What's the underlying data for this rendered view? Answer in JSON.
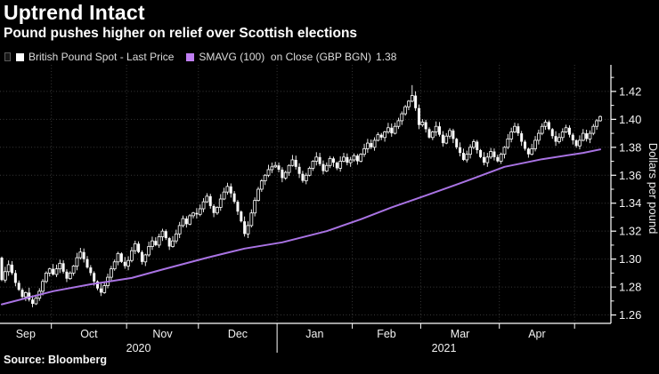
{
  "colors": {
    "background": "#000000",
    "title_text": "#ffffff",
    "legend_text": "#dcdcdc",
    "axis": "#ffffff",
    "grid": "#383838",
    "candle": "#ffffff",
    "smavg_line": "#a973e3",
    "smavg_swatch": "#c07ef2",
    "tick_text": "#f2f2f2"
  },
  "chart_data": {
    "type": "candlestick",
    "title": "Uptrend Intact",
    "subtitle": "Pound pushes higher on relief over Scottish elections",
    "source": "Source: Bloomberg",
    "ylabel": "Dollars per pound",
    "ylim": [
      1.254,
      1.439
    ],
    "y_ticks_major": [
      1.26,
      1.28,
      1.3,
      1.32,
      1.34,
      1.36,
      1.38,
      1.4,
      1.42
    ],
    "y_tick_labels": [
      "1.26",
      "1.28",
      "1.30",
      "1.32",
      "1.34",
      "1.36",
      "1.38",
      "1.40",
      "1.42"
    ],
    "y_minor_step": 0.01,
    "x_months": [
      "Sep",
      "Oct",
      "Nov",
      "Dec",
      "Jan",
      "Feb",
      "Mar",
      "Apr"
    ],
    "x_years": [
      "2020",
      "2021"
    ],
    "month_start_indices": [
      0,
      15,
      37,
      58,
      81,
      103,
      123,
      146,
      168
    ],
    "year_boundary_number": 3,
    "grid": "dotted",
    "legend": [
      {
        "label": "British Pound Spot - Last Price"
      },
      {
        "label": "SMAVG (100)  on Close (GBP BGN)",
        "value": "1.38"
      }
    ],
    "series": [
      {
        "name": "British Pound Spot - Last Price",
        "type": "candlestick",
        "first_open": 1.301,
        "closes": [
          1.285,
          1.291,
          1.296,
          1.29,
          1.283,
          1.278,
          1.273,
          1.276,
          1.271,
          1.268,
          1.272,
          1.277,
          1.284,
          1.29,
          1.293,
          1.289,
          1.293,
          1.297,
          1.291,
          1.286,
          1.29,
          1.295,
          1.301,
          1.305,
          1.3,
          1.294,
          1.29,
          1.284,
          1.279,
          1.276,
          1.281,
          1.287,
          1.293,
          1.298,
          1.304,
          1.298,
          1.295,
          1.299,
          1.306,
          1.311,
          1.305,
          1.298,
          1.303,
          1.309,
          1.313,
          1.31,
          1.316,
          1.32,
          1.315,
          1.309,
          1.313,
          1.318,
          1.324,
          1.329,
          1.325,
          1.331,
          1.333,
          1.332,
          1.336,
          1.341,
          1.345,
          1.338,
          1.333,
          1.337,
          1.343,
          1.348,
          1.352,
          1.347,
          1.341,
          1.334,
          1.327,
          1.318,
          1.324,
          1.333,
          1.342,
          1.35,
          1.356,
          1.36,
          1.364,
          1.366,
          1.367,
          1.364,
          1.358,
          1.362,
          1.367,
          1.371,
          1.366,
          1.361,
          1.356,
          1.36,
          1.365,
          1.37,
          1.373,
          1.368,
          1.363,
          1.367,
          1.372,
          1.369,
          1.365,
          1.37,
          1.373,
          1.369,
          1.371,
          1.374,
          1.37,
          1.375,
          1.379,
          1.383,
          1.38,
          1.385,
          1.389,
          1.387,
          1.391,
          1.394,
          1.39,
          1.395,
          1.399,
          1.404,
          1.409,
          1.413,
          1.417,
          1.408,
          1.396,
          1.398,
          1.393,
          1.387,
          1.391,
          1.395,
          1.389,
          1.383,
          1.388,
          1.392,
          1.386,
          1.38,
          1.376,
          1.371,
          1.375,
          1.38,
          1.384,
          1.378,
          1.373,
          1.369,
          1.373,
          1.377,
          1.373,
          1.37,
          1.375,
          1.38,
          1.386,
          1.391,
          1.395,
          1.39,
          1.384,
          1.379,
          1.375,
          1.379,
          1.385,
          1.39,
          1.395,
          1.398,
          1.393,
          1.388,
          1.384,
          1.387,
          1.391,
          1.394,
          1.389,
          1.385,
          1.381,
          1.385,
          1.39,
          1.386,
          1.39,
          1.395,
          1.399,
          1.402
        ]
      },
      {
        "name": "SMAVG (100) on Close (GBP BGN)",
        "type": "line",
        "last_value": 1.38,
        "points_by_index": [
          [
            0,
            1.2676
          ],
          [
            15,
            1.277
          ],
          [
            26,
            1.282
          ],
          [
            38,
            1.2865
          ],
          [
            47,
            1.2925
          ],
          [
            60,
            1.301
          ],
          [
            71,
            1.3075
          ],
          [
            82,
            1.312
          ],
          [
            95,
            1.32
          ],
          [
            105,
            1.3285
          ],
          [
            114,
            1.337
          ],
          [
            124,
            1.3455
          ],
          [
            136,
            1.356
          ],
          [
            147,
            1.366
          ],
          [
            158,
            1.3715
          ],
          [
            170,
            1.376
          ],
          [
            175,
            1.3785
          ]
        ]
      }
    ]
  }
}
